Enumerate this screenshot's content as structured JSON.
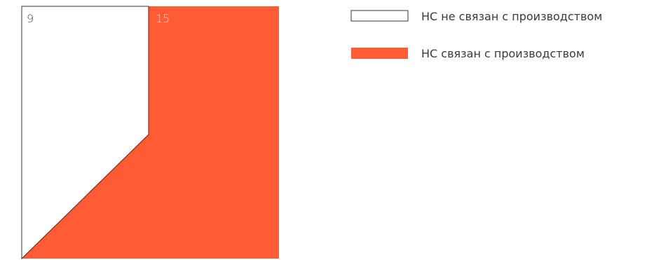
{
  "chart_data": {
    "type": "area",
    "series": [
      {
        "name": "НС не связан с производством",
        "value": 9,
        "color": "#ffffff",
        "stroke": "#333333"
      },
      {
        "name": "НС связан с производством",
        "value": 15,
        "color": "#ff5c35",
        "stroke": "#ff5c35"
      }
    ],
    "legend_position": "top-right",
    "grid": false
  }
}
